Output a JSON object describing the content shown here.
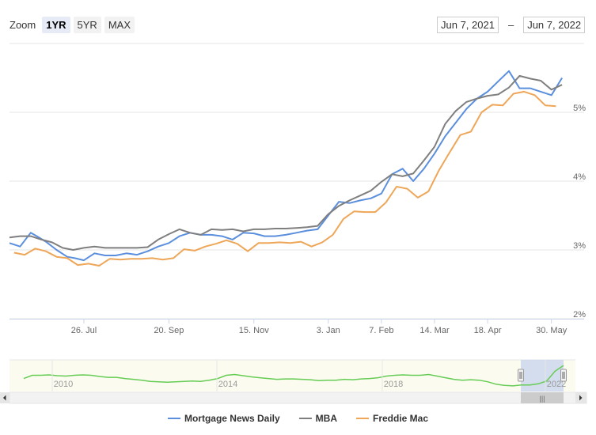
{
  "zoom": {
    "label": "Zoom",
    "buttons": [
      "1YR",
      "5YR",
      "MAX"
    ],
    "active": "1YR"
  },
  "range": {
    "from": "Jun 7, 2021",
    "separator": "–",
    "to": "Jun 7, 2022"
  },
  "navigator": {
    "labels": [
      "2010",
      "2014",
      "2018",
      "2022"
    ],
    "scroll_grip": "|||",
    "series_color": "#66cc55",
    "selection_color": "#c9d4ec",
    "values": [
      3.9,
      4.3,
      4.3,
      4.35,
      4.25,
      4.2,
      4.3,
      4.35,
      4.3,
      4.15,
      4.05,
      4.05,
      3.9,
      3.8,
      3.7,
      3.55,
      3.5,
      3.45,
      3.5,
      3.55,
      3.6,
      3.55,
      3.7,
      3.9,
      4.3,
      4.4,
      4.25,
      4.1,
      4.0,
      3.9,
      3.8,
      3.85,
      3.85,
      3.8,
      3.75,
      3.65,
      3.7,
      3.7,
      3.8,
      3.75,
      3.85,
      3.9,
      4.0,
      4.2,
      4.3,
      4.35,
      4.3,
      4.3,
      4.4,
      4.2,
      4.0,
      3.8,
      3.7,
      3.75,
      3.7,
      3.5,
      3.2,
      3.05,
      3.0,
      3.1,
      3.1,
      3.25,
      3.6,
      4.8,
      5.5
    ]
  },
  "colors": {
    "mnd": "#5b8fdd",
    "mba": "#7f7f7f",
    "freddie": "#eea658",
    "grid": "#e6e6e6"
  },
  "chart_data": {
    "type": "line",
    "x_tick_labels": [
      "26. Jul",
      "20. Sep",
      "15. Nov",
      "3. Jan",
      "7. Feb",
      "14. Mar",
      "18. Apr",
      "30. May"
    ],
    "y_tick_labels": [
      "2%",
      "3%",
      "4%",
      "5%"
    ],
    "x_range": [
      "2021-06-07",
      "2022-06-07"
    ],
    "ylim": [
      2,
      6
    ],
    "grid": true,
    "legend_position": "bottom",
    "series": [
      {
        "name": "Mortgage News Daily",
        "x": [
          "2021-06-07",
          "2021-06-14",
          "2021-06-21",
          "2021-06-25",
          "2021-07-01",
          "2021-07-08",
          "2021-07-15",
          "2021-07-20",
          "2021-07-26",
          "2021-08-02",
          "2021-08-09",
          "2021-08-16",
          "2021-08-23",
          "2021-08-30",
          "2021-09-06",
          "2021-09-13",
          "2021-09-20",
          "2021-09-27",
          "2021-10-04",
          "2021-10-11",
          "2021-10-18",
          "2021-10-25",
          "2021-11-01",
          "2021-11-08",
          "2021-11-15",
          "2021-11-22",
          "2021-11-29",
          "2021-12-06",
          "2021-12-13",
          "2021-12-20",
          "2021-12-27",
          "2022-01-03",
          "2022-01-10",
          "2022-01-17",
          "2022-01-24",
          "2022-01-31",
          "2022-02-07",
          "2022-02-14",
          "2022-02-21",
          "2022-02-28",
          "2022-03-07",
          "2022-03-14",
          "2022-03-21",
          "2022-03-28",
          "2022-04-04",
          "2022-04-11",
          "2022-04-18",
          "2022-04-25",
          "2022-05-02",
          "2022-05-09",
          "2022-05-16",
          "2022-05-23",
          "2022-05-30",
          "2022-06-06"
        ],
        "values": [
          3.1,
          3.05,
          3.25,
          3.2,
          3.12,
          3.0,
          2.9,
          2.88,
          2.85,
          2.95,
          2.92,
          2.92,
          2.95,
          2.93,
          2.98,
          3.05,
          3.1,
          3.2,
          3.25,
          3.22,
          3.22,
          3.2,
          3.15,
          3.25,
          3.24,
          3.2,
          3.2,
          3.22,
          3.25,
          3.28,
          3.3,
          3.5,
          3.7,
          3.68,
          3.72,
          3.75,
          3.82,
          4.1,
          4.18,
          4.0,
          4.18,
          4.4,
          4.65,
          4.85,
          5.05,
          5.2,
          5.3,
          5.45,
          5.6,
          5.35,
          5.35,
          5.3,
          5.25,
          5.5
        ]
      },
      {
        "name": "MBA",
        "x": [
          "2021-06-07",
          "2021-06-14",
          "2021-06-21",
          "2021-06-28",
          "2021-07-05",
          "2021-07-12",
          "2021-07-19",
          "2021-07-26",
          "2021-08-02",
          "2021-08-09",
          "2021-08-16",
          "2021-08-23",
          "2021-08-30",
          "2021-09-06",
          "2021-09-13",
          "2021-09-20",
          "2021-09-27",
          "2021-10-04",
          "2021-10-11",
          "2021-10-18",
          "2021-10-25",
          "2021-11-01",
          "2021-11-08",
          "2021-11-15",
          "2021-11-22",
          "2021-11-29",
          "2021-12-06",
          "2021-12-13",
          "2021-12-20",
          "2021-12-27",
          "2022-01-03",
          "2022-01-10",
          "2022-01-17",
          "2022-01-24",
          "2022-01-31",
          "2022-02-07",
          "2022-02-14",
          "2022-02-21",
          "2022-02-28",
          "2022-03-07",
          "2022-03-14",
          "2022-03-21",
          "2022-03-28",
          "2022-04-04",
          "2022-04-11",
          "2022-04-18",
          "2022-04-25",
          "2022-05-02",
          "2022-05-09",
          "2022-05-16",
          "2022-05-23",
          "2022-05-30",
          "2022-06-06"
        ],
        "values": [
          3.18,
          3.2,
          3.2,
          3.15,
          3.11,
          3.03,
          3.0,
          3.03,
          3.05,
          3.03,
          3.03,
          3.03,
          3.03,
          3.04,
          3.15,
          3.23,
          3.3,
          3.25,
          3.22,
          3.3,
          3.29,
          3.3,
          3.27,
          3.3,
          3.3,
          3.31,
          3.31,
          3.32,
          3.33,
          3.35,
          3.52,
          3.64,
          3.72,
          3.79,
          3.86,
          3.99,
          4.1,
          4.07,
          4.11,
          4.3,
          4.5,
          4.83,
          5.02,
          5.15,
          5.2,
          5.24,
          5.26,
          5.36,
          5.53,
          5.49,
          5.46,
          5.33,
          5.4
        ]
      },
      {
        "name": "Freddie Mac",
        "x": [
          "2021-06-10",
          "2021-06-17",
          "2021-06-24",
          "2021-07-01",
          "2021-07-08",
          "2021-07-15",
          "2021-07-22",
          "2021-07-29",
          "2021-08-05",
          "2021-08-12",
          "2021-08-19",
          "2021-08-26",
          "2021-09-02",
          "2021-09-09",
          "2021-09-16",
          "2021-09-23",
          "2021-09-30",
          "2021-10-07",
          "2021-10-14",
          "2021-10-21",
          "2021-10-28",
          "2021-11-04",
          "2021-11-11",
          "2021-11-18",
          "2021-11-25",
          "2021-12-02",
          "2021-12-09",
          "2021-12-16",
          "2021-12-23",
          "2021-12-30",
          "2022-01-06",
          "2022-01-13",
          "2022-01-20",
          "2022-01-27",
          "2022-02-03",
          "2022-02-10",
          "2022-02-17",
          "2022-02-24",
          "2022-03-03",
          "2022-03-10",
          "2022-03-17",
          "2022-03-24",
          "2022-03-31",
          "2022-04-07",
          "2022-04-14",
          "2022-04-21",
          "2022-04-28",
          "2022-05-05",
          "2022-05-12",
          "2022-05-19",
          "2022-05-26",
          "2022-06-02"
        ],
        "values": [
          2.96,
          2.93,
          3.02,
          2.98,
          2.9,
          2.88,
          2.78,
          2.8,
          2.77,
          2.87,
          2.86,
          2.87,
          2.87,
          2.88,
          2.86,
          2.88,
          3.01,
          2.99,
          3.05,
          3.09,
          3.14,
          3.09,
          2.98,
          3.1,
          3.1,
          3.11,
          3.1,
          3.12,
          3.05,
          3.11,
          3.22,
          3.45,
          3.56,
          3.55,
          3.55,
          3.69,
          3.92,
          3.89,
          3.76,
          3.85,
          4.16,
          4.42,
          4.67,
          4.72,
          5.0,
          5.11,
          5.1,
          5.27,
          5.3,
          5.25,
          5.1,
          5.09
        ]
      }
    ]
  }
}
